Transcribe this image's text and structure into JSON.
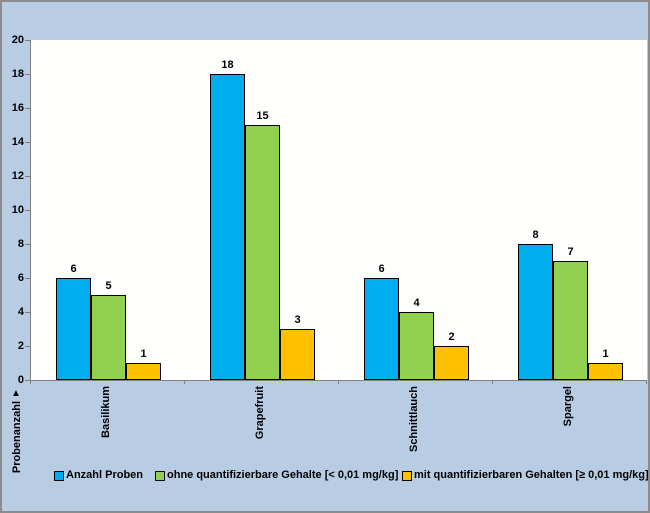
{
  "chart_data": {
    "type": "bar",
    "categories": [
      "Basilikum",
      "Grapefruit",
      "Schnittlauch",
      "Spargel"
    ],
    "series": [
      {
        "name": "Anzahl Proben",
        "color": "#00aeef",
        "values": [
          6,
          18,
          6,
          8
        ]
      },
      {
        "name": "ohne quantifizierbare Gehalte [< 0,01 mg/kg]",
        "color": "#92d050",
        "values": [
          5,
          15,
          4,
          7
        ]
      },
      {
        "name": "mit quantifizierbaren Gehalten [≥ 0,01 mg/kg]",
        "color": "#ffc000",
        "values": [
          1,
          3,
          2,
          1
        ]
      }
    ],
    "title": "",
    "xlabel": "",
    "ylabel": "Probenanzahl",
    "ylabel_arrow": "▲",
    "ylim": [
      0,
      20
    ],
    "yticks": [
      0,
      2,
      4,
      6,
      8,
      10,
      12,
      14,
      16,
      18,
      20
    ],
    "grid": false,
    "data_labels": true,
    "legend_position": "bottom"
  },
  "colors": {
    "background": "#b8cce4",
    "plot_background": "#fffffe",
    "axis": "#808080",
    "bar_border": "#000000",
    "frame_border": "#8c8c8c",
    "text": "#000000"
  }
}
